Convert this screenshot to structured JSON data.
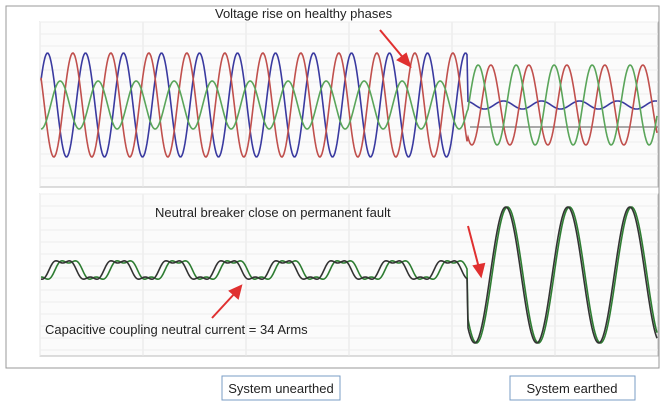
{
  "annotations": {
    "voltage_rise": "Voltage rise on healthy phases",
    "breaker_close": "Neutral breaker close on permanent fault",
    "capacitive_current": "Capacitive coupling neutral current = 34 Arms"
  },
  "footer": {
    "unearthed": "System unearthed",
    "earthed": "System earthed"
  }
}
